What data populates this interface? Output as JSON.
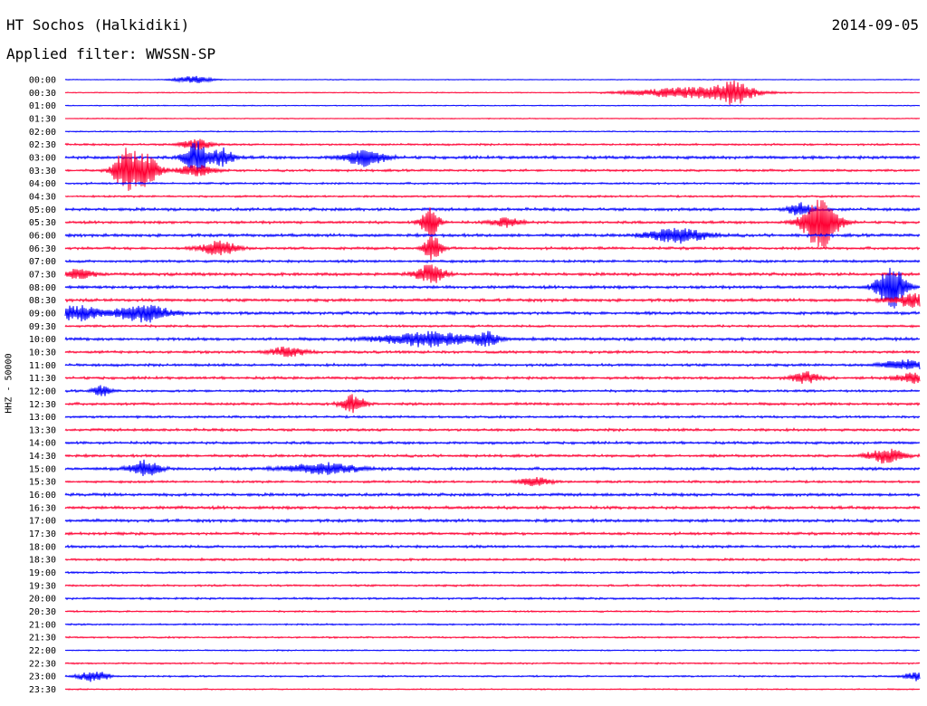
{
  "header": {
    "station": "HT Sochos (Halkidiki)",
    "date": "2014-09-05",
    "filter": "Applied filter: WWSSN-SP"
  },
  "channel_label": "HHZ - 50000",
  "colors": {
    "even_trace": "#0000ff",
    "odd_trace": "#ff0033"
  },
  "chart_data": {
    "type": "line",
    "description_free": true,
    "time_labels": [
      "00:00",
      "00:30",
      "01:00",
      "01:30",
      "02:00",
      "02:30",
      "03:00",
      "03:30",
      "04:00",
      "04:30",
      "05:00",
      "05:30",
      "06:00",
      "06:30",
      "07:00",
      "07:30",
      "08:00",
      "08:30",
      "09:00",
      "09:30",
      "10:00",
      "10:30",
      "11:00",
      "11:30",
      "12:00",
      "12:30",
      "13:00",
      "13:30",
      "14:00",
      "14:30",
      "15:00",
      "15:30",
      "16:00",
      "16:30",
      "17:00",
      "17:30",
      "18:00",
      "18:30",
      "19:00",
      "19:30",
      "20:00",
      "20:30",
      "21:00",
      "21:30",
      "22:00",
      "22:30",
      "23:00",
      "23:30"
    ],
    "trace_noise": [
      0.25,
      0.3,
      0.3,
      0.3,
      0.35,
      0.6,
      0.9,
      0.7,
      0.6,
      0.6,
      0.9,
      0.8,
      0.9,
      0.8,
      0.8,
      0.9,
      0.9,
      0.9,
      0.9,
      0.7,
      0.9,
      0.8,
      0.8,
      0.8,
      0.7,
      0.8,
      0.7,
      0.8,
      0.8,
      0.8,
      0.9,
      0.7,
      0.9,
      0.9,
      0.9,
      0.8,
      0.8,
      0.7,
      0.6,
      0.6,
      0.6,
      0.5,
      0.5,
      0.5,
      0.4,
      0.5,
      0.5,
      0.4
    ],
    "events": [
      {
        "trace": 0,
        "minute": 4.5,
        "amp": 4,
        "width": 0.6
      },
      {
        "trace": 1,
        "minute": 22,
        "amp": 6,
        "width": 2.0
      },
      {
        "trace": 1,
        "minute": 23.5,
        "amp": 10,
        "width": 0.6
      },
      {
        "trace": 5,
        "minute": 4.6,
        "amp": 6,
        "width": 0.5
      },
      {
        "trace": 6,
        "minute": 4.6,
        "amp": 18,
        "width": 0.4
      },
      {
        "trace": 6,
        "minute": 5.5,
        "amp": 10,
        "width": 0.4
      },
      {
        "trace": 6,
        "minute": 10.5,
        "amp": 9,
        "width": 0.7
      },
      {
        "trace": 7,
        "minute": 2.1,
        "amp": 22,
        "width": 0.4
      },
      {
        "trace": 7,
        "minute": 2.8,
        "amp": 18,
        "width": 0.5
      },
      {
        "trace": 7,
        "minute": 4.6,
        "amp": 6,
        "width": 0.6
      },
      {
        "trace": 10,
        "minute": 25.8,
        "amp": 8,
        "width": 0.4
      },
      {
        "trace": 11,
        "minute": 12.8,
        "amp": 18,
        "width": 0.3
      },
      {
        "trace": 11,
        "minute": 15.5,
        "amp": 5,
        "width": 0.5
      },
      {
        "trace": 11,
        "minute": 26.5,
        "amp": 30,
        "width": 0.6
      },
      {
        "trace": 12,
        "minute": 21.5,
        "amp": 8,
        "width": 1.0
      },
      {
        "trace": 13,
        "minute": 5.4,
        "amp": 8,
        "width": 0.6
      },
      {
        "trace": 13,
        "minute": 12.9,
        "amp": 14,
        "width": 0.3
      },
      {
        "trace": 15,
        "minute": 0.5,
        "amp": 5,
        "width": 0.5
      },
      {
        "trace": 15,
        "minute": 12.8,
        "amp": 10,
        "width": 0.5
      },
      {
        "trace": 16,
        "minute": 29,
        "amp": 24,
        "width": 0.5
      },
      {
        "trace": 17,
        "minute": 29.8,
        "amp": 7,
        "width": 0.8
      },
      {
        "trace": 18,
        "minute": 0.5,
        "amp": 8,
        "width": 0.8
      },
      {
        "trace": 18,
        "minute": 2.7,
        "amp": 10,
        "width": 0.9
      },
      {
        "trace": 20,
        "minute": 12.7,
        "amp": 8,
        "width": 1.6
      },
      {
        "trace": 20,
        "minute": 14.8,
        "amp": 7,
        "width": 0.4
      },
      {
        "trace": 21,
        "minute": 7.8,
        "amp": 5,
        "width": 0.6
      },
      {
        "trace": 22,
        "minute": 29.5,
        "amp": 5,
        "width": 0.8
      },
      {
        "trace": 23,
        "minute": 26,
        "amp": 6,
        "width": 0.5
      },
      {
        "trace": 23,
        "minute": 29.8,
        "amp": 5,
        "width": 0.6
      },
      {
        "trace": 24,
        "minute": 1.3,
        "amp": 6,
        "width": 0.3
      },
      {
        "trace": 25,
        "minute": 10.1,
        "amp": 10,
        "width": 0.4
      },
      {
        "trace": 29,
        "minute": 28.8,
        "amp": 8,
        "width": 0.6
      },
      {
        "trace": 30,
        "minute": 2.8,
        "amp": 9,
        "width": 0.5
      },
      {
        "trace": 30,
        "minute": 9.0,
        "amp": 6,
        "width": 1.2
      },
      {
        "trace": 31,
        "minute": 16.5,
        "amp": 5,
        "width": 0.5
      },
      {
        "trace": 46,
        "minute": 1.0,
        "amp": 6,
        "width": 0.5
      },
      {
        "trace": 46,
        "minute": 30.0,
        "amp": 5,
        "width": 0.5
      }
    ],
    "xlim": [
      0,
      30
    ],
    "xlabel": "",
    "ylabel": "HHZ - 50000"
  }
}
